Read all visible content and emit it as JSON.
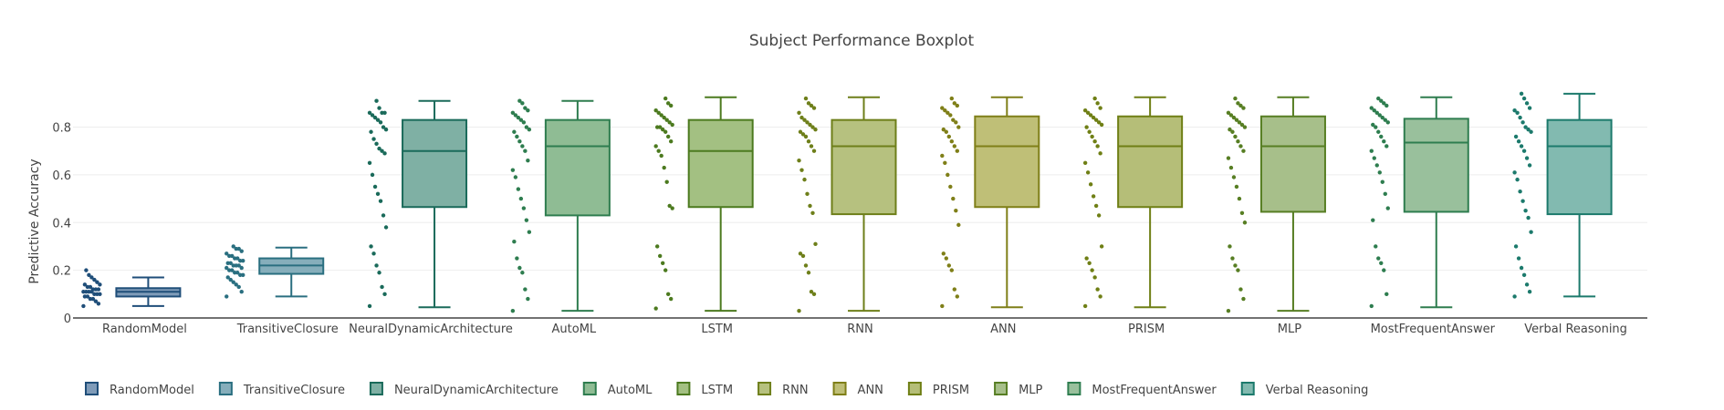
{
  "chart_data": {
    "type": "box",
    "title": "Subject Performance Boxplot",
    "xlabel": "",
    "ylabel": "Predictive Accuracy",
    "ylim": [
      0,
      0.97
    ],
    "yticks": [
      0,
      0.2,
      0.4,
      0.6,
      0.8
    ],
    "ytick_labels": [
      "0",
      "0.2",
      "0.4",
      "0.6",
      "0.8"
    ],
    "grid": true,
    "legend_position": "bottom-left",
    "series": [
      {
        "name": "RandomModel",
        "color": "#1f4e79",
        "fill": "#7f9bb8",
        "min": 0.05,
        "q1": 0.09,
        "median": 0.11,
        "q3": 0.125,
        "max": 0.17,
        "points": [
          0.05,
          0.06,
          0.07,
          0.08,
          0.08,
          0.09,
          0.09,
          0.1,
          0.1,
          0.1,
          0.11,
          0.11,
          0.11,
          0.11,
          0.12,
          0.12,
          0.12,
          0.13,
          0.13,
          0.14,
          0.14,
          0.15,
          0.16,
          0.17,
          0.18,
          0.2
        ]
      },
      {
        "name": "TransitiveClosure",
        "color": "#2a6f80",
        "fill": "#86aebb",
        "min": 0.09,
        "q1": 0.185,
        "median": 0.22,
        "q3": 0.25,
        "max": 0.295,
        "points": [
          0.09,
          0.11,
          0.13,
          0.14,
          0.15,
          0.16,
          0.17,
          0.18,
          0.18,
          0.19,
          0.19,
          0.2,
          0.2,
          0.21,
          0.21,
          0.22,
          0.22,
          0.22,
          0.23,
          0.23,
          0.24,
          0.24,
          0.25,
          0.25,
          0.26,
          0.26,
          0.27,
          0.28,
          0.29,
          0.29,
          0.3
        ]
      },
      {
        "name": "NeuralDynamicArchitecture",
        "color": "#1a6a5a",
        "fill": "#7fb0a4",
        "min": 0.045,
        "q1": 0.465,
        "median": 0.7,
        "q3": 0.83,
        "max": 0.91,
        "points": [
          0.05,
          0.1,
          0.13,
          0.19,
          0.22,
          0.27,
          0.3,
          0.38,
          0.43,
          0.49,
          0.52,
          0.55,
          0.6,
          0.65,
          0.69,
          0.7,
          0.71,
          0.73,
          0.75,
          0.78,
          0.79,
          0.8,
          0.82,
          0.83,
          0.84,
          0.85,
          0.86,
          0.86,
          0.86,
          0.88,
          0.91
        ]
      },
      {
        "name": "AutoML",
        "color": "#2e7d4f",
        "fill": "#8fbc94",
        "min": 0.03,
        "q1": 0.43,
        "median": 0.72,
        "q3": 0.83,
        "max": 0.91,
        "points": [
          0.03,
          0.08,
          0.12,
          0.19,
          0.21,
          0.25,
          0.32,
          0.36,
          0.41,
          0.46,
          0.5,
          0.54,
          0.59,
          0.62,
          0.66,
          0.7,
          0.72,
          0.74,
          0.76,
          0.78,
          0.79,
          0.8,
          0.82,
          0.83,
          0.84,
          0.85,
          0.86,
          0.87,
          0.88,
          0.9,
          0.91
        ]
      },
      {
        "name": "LSTM",
        "color": "#4c7a1f",
        "fill": "#a3c082",
        "min": 0.03,
        "q1": 0.465,
        "median": 0.7,
        "q3": 0.83,
        "max": 0.925,
        "points": [
          0.04,
          0.08,
          0.1,
          0.2,
          0.23,
          0.26,
          0.3,
          0.46,
          0.47,
          0.57,
          0.63,
          0.68,
          0.7,
          0.72,
          0.74,
          0.76,
          0.78,
          0.79,
          0.8,
          0.8,
          0.81,
          0.82,
          0.83,
          0.84,
          0.85,
          0.86,
          0.87,
          0.89,
          0.9,
          0.92
        ]
      },
      {
        "name": "RNN",
        "color": "#6e7f1a",
        "fill": "#b6c17f",
        "min": 0.03,
        "q1": 0.435,
        "median": 0.72,
        "q3": 0.83,
        "max": 0.925,
        "points": [
          0.03,
          0.1,
          0.11,
          0.19,
          0.22,
          0.26,
          0.27,
          0.31,
          0.44,
          0.47,
          0.52,
          0.58,
          0.62,
          0.66,
          0.7,
          0.72,
          0.74,
          0.76,
          0.77,
          0.78,
          0.79,
          0.8,
          0.81,
          0.82,
          0.83,
          0.84,
          0.86,
          0.88,
          0.89,
          0.9,
          0.92
        ]
      },
      {
        "name": "ANN",
        "color": "#7f7f18",
        "fill": "#bfbf77",
        "min": 0.045,
        "q1": 0.465,
        "median": 0.72,
        "q3": 0.845,
        "max": 0.925,
        "points": [
          0.05,
          0.09,
          0.12,
          0.2,
          0.22,
          0.25,
          0.27,
          0.39,
          0.45,
          0.5,
          0.55,
          0.6,
          0.65,
          0.68,
          0.7,
          0.72,
          0.74,
          0.76,
          0.78,
          0.79,
          0.8,
          0.82,
          0.83,
          0.85,
          0.86,
          0.87,
          0.88,
          0.89,
          0.9,
          0.92
        ]
      },
      {
        "name": "PRISM",
        "color": "#6f7f15",
        "fill": "#b5be78",
        "min": 0.045,
        "q1": 0.465,
        "median": 0.72,
        "q3": 0.845,
        "max": 0.925,
        "points": [
          0.05,
          0.09,
          0.12,
          0.17,
          0.2,
          0.23,
          0.25,
          0.3,
          0.43,
          0.47,
          0.51,
          0.56,
          0.61,
          0.65,
          0.69,
          0.72,
          0.74,
          0.76,
          0.78,
          0.8,
          0.81,
          0.82,
          0.83,
          0.84,
          0.85,
          0.86,
          0.87,
          0.88,
          0.9,
          0.92
        ]
      },
      {
        "name": "MLP",
        "color": "#577e23",
        "fill": "#a7bf8a",
        "min": 0.03,
        "q1": 0.445,
        "median": 0.72,
        "q3": 0.845,
        "max": 0.925,
        "points": [
          0.03,
          0.08,
          0.12,
          0.2,
          0.22,
          0.25,
          0.3,
          0.4,
          0.44,
          0.5,
          0.55,
          0.59,
          0.63,
          0.67,
          0.7,
          0.72,
          0.74,
          0.76,
          0.78,
          0.79,
          0.8,
          0.81,
          0.82,
          0.83,
          0.84,
          0.85,
          0.86,
          0.88,
          0.89,
          0.9,
          0.92
        ]
      },
      {
        "name": "MostFrequentAnswer",
        "color": "#2e7d4f",
        "fill": "#99c09c",
        "min": 0.045,
        "q1": 0.445,
        "median": 0.735,
        "q3": 0.835,
        "max": 0.925,
        "points": [
          0.05,
          0.1,
          0.2,
          0.23,
          0.25,
          0.3,
          0.41,
          0.46,
          0.52,
          0.57,
          0.61,
          0.64,
          0.67,
          0.7,
          0.72,
          0.74,
          0.76,
          0.78,
          0.8,
          0.81,
          0.82,
          0.83,
          0.84,
          0.85,
          0.86,
          0.87,
          0.88,
          0.89,
          0.9,
          0.91,
          0.92
        ]
      },
      {
        "name": "Verbal Reasoning",
        "color": "#1c7a6c",
        "fill": "#82bab0",
        "min": 0.09,
        "q1": 0.435,
        "median": 0.72,
        "q3": 0.83,
        "max": 0.94,
        "points": [
          0.09,
          0.11,
          0.14,
          0.18,
          0.21,
          0.25,
          0.3,
          0.36,
          0.42,
          0.45,
          0.49,
          0.53,
          0.58,
          0.61,
          0.64,
          0.67,
          0.7,
          0.72,
          0.74,
          0.76,
          0.78,
          0.79,
          0.8,
          0.82,
          0.84,
          0.86,
          0.87,
          0.88,
          0.9,
          0.92,
          0.94
        ]
      }
    ]
  }
}
